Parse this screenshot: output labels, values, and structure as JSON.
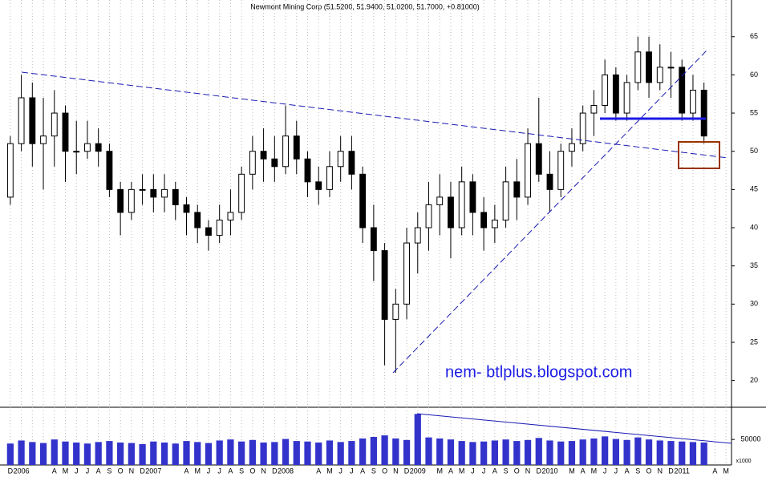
{
  "chart_data": {
    "type": "candlestick",
    "title": "Newmont Mining Corp (51.5200, 51.9400, 51.0200, 51.7000, +0.81000)",
    "annotation": "nem- btlplus.blogspot.com",
    "categories": [
      "D",
      "2006",
      null,
      null,
      "A",
      "M",
      "J",
      "J",
      "A",
      "S",
      "O",
      "N",
      "D",
      "2007",
      null,
      null,
      "A",
      "M",
      "J",
      "J",
      "A",
      "S",
      "O",
      "N",
      "D",
      "2008",
      null,
      null,
      "A",
      "M",
      "J",
      "J",
      "A",
      "S",
      "O",
      "N",
      "D",
      "2009",
      null,
      "M",
      "A",
      "M",
      "J",
      "J",
      "A",
      "S",
      "O",
      "N",
      "D",
      "2010",
      null,
      "M",
      "A",
      "M",
      "J",
      "J",
      "A",
      "S",
      "O",
      "N",
      "D",
      "2011",
      null,
      null,
      "A",
      "M"
    ],
    "open": [
      44,
      51,
      57,
      51,
      52,
      55,
      50,
      50,
      51,
      50,
      45,
      42,
      45,
      45,
      44,
      45,
      43,
      42,
      40,
      39,
      41,
      42,
      47,
      50,
      49,
      48,
      52,
      49,
      46,
      45,
      48,
      50,
      47,
      40,
      37,
      28,
      30,
      38,
      40,
      43,
      44,
      40,
      46,
      42,
      40,
      41,
      46,
      44,
      51,
      47,
      45,
      50,
      51,
      55,
      56,
      60,
      55,
      59,
      63,
      59,
      61,
      61,
      55,
      58,
      null,
      null
    ],
    "high": [
      52,
      60,
      59,
      57,
      58,
      56,
      54,
      54,
      53,
      51,
      46,
      46,
      47,
      47,
      47,
      46,
      44,
      43,
      41,
      43,
      45,
      48,
      52,
      53,
      52,
      56,
      54,
      50,
      48,
      50,
      52,
      52,
      48,
      43,
      38,
      32,
      40,
      42,
      46,
      47,
      46,
      48,
      47,
      44,
      43,
      48,
      49,
      53,
      57,
      50,
      51,
      53,
      56,
      58,
      62,
      61,
      60,
      65,
      65,
      64,
      63,
      62,
      60,
      59,
      null,
      null
    ],
    "low": [
      43,
      50,
      48,
      45,
      48,
      46,
      47,
      49,
      48,
      44,
      39,
      41,
      43,
      42,
      42,
      41,
      39,
      38,
      37,
      38,
      39,
      41,
      45,
      46,
      46,
      47,
      47,
      44,
      43,
      44,
      46,
      45,
      38,
      33,
      22,
      21,
      28,
      34,
      37,
      39,
      36,
      39,
      39,
      37,
      38,
      40,
      41,
      43,
      46,
      42,
      44,
      48,
      50,
      52,
      55,
      54,
      54,
      58,
      57,
      58,
      57,
      54,
      54,
      51,
      null,
      null
    ],
    "close": [
      51,
      57,
      51,
      52,
      55,
      50,
      50,
      51,
      50,
      45,
      42,
      45,
      45,
      44,
      45,
      43,
      42,
      40,
      39,
      41,
      42,
      47,
      50,
      49,
      48,
      52,
      49,
      46,
      45,
      48,
      50,
      47,
      40,
      37,
      28,
      30,
      38,
      40,
      43,
      44,
      40,
      46,
      42,
      40,
      41,
      46,
      44,
      51,
      47,
      45,
      50,
      51,
      55,
      56,
      60,
      55,
      59,
      63,
      59,
      61,
      61,
      55,
      58,
      52,
      null,
      null
    ],
    "color": "#000000",
    "ylim": [
      16.5,
      69.8
    ],
    "yticks": [
      20,
      25,
      30,
      35,
      40,
      45,
      50,
      55,
      60,
      65
    ],
    "volume": {
      "name": "x1000",
      "color": "#3333cc",
      "values": [
        42000,
        48000,
        45000,
        43000,
        50000,
        46000,
        44000,
        42000,
        45000,
        47000,
        44000,
        43000,
        41000,
        46000,
        44000,
        42000,
        47000,
        45000,
        43000,
        48000,
        50000,
        46000,
        49000,
        44000,
        45000,
        51000,
        47000,
        46000,
        44000,
        48000,
        45000,
        47000,
        52000,
        55000,
        58000,
        52000,
        49000,
        100000,
        54000,
        52000,
        50000,
        47000,
        45000,
        46000,
        48000,
        50000,
        47000,
        49000,
        53000,
        48000,
        46000,
        47000,
        50000,
        52000,
        56000,
        51000,
        49000,
        54000,
        50000,
        48000,
        47000,
        46000,
        45000,
        44000,
        null,
        null
      ],
      "ylim": [
        0,
        110000
      ],
      "yticks": [
        50000
      ]
    },
    "grid": true
  }
}
